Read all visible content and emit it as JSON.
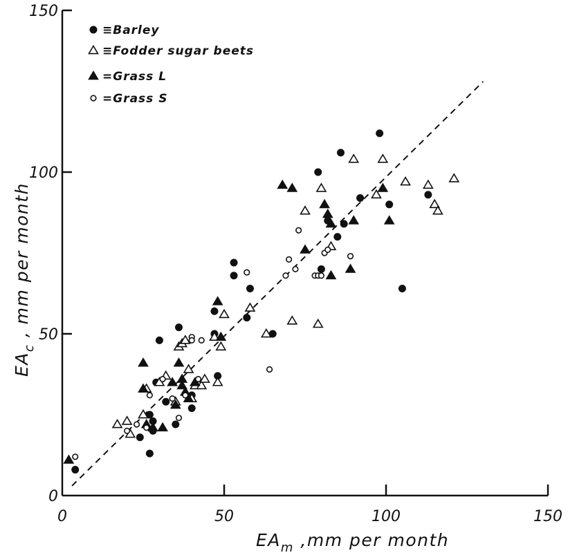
{
  "chart_data": {
    "type": "scatter",
    "xlabel": {
      "base": "EA",
      "sub": "m",
      "rest": " ,mm per month"
    },
    "ylabel": {
      "base": "EA",
      "sub": "c",
      "rest": " , mm per month"
    },
    "xlim": [
      0,
      150
    ],
    "ylim": [
      0,
      150
    ],
    "xticks": [
      0,
      50,
      100,
      150
    ],
    "yticks": [
      0,
      50,
      100,
      150
    ],
    "xtick_labels": [
      "0",
      "50",
      "100",
      "150"
    ],
    "ytick_labels": [
      "0",
      "50",
      "100",
      "150"
    ],
    "grid": false,
    "legend_position": "top-left",
    "reference_line": {
      "style": "dashed",
      "from": [
        3,
        3
      ],
      "to": [
        130,
        128
      ]
    },
    "legend": [
      {
        "marker": "filled-circle",
        "label": "≡Barley"
      },
      {
        "marker": "open-triangle",
        "label": "≡Fodder sugar beets"
      },
      {
        "marker": "filled-triangle",
        "label": "=Grass L"
      },
      {
        "marker": "open-circle",
        "label": "=Grass S"
      }
    ],
    "series": [
      {
        "name": "Barley",
        "marker": "filled-circle",
        "points": [
          [
            4,
            8
          ],
          [
            24,
            18
          ],
          [
            27,
            25
          ],
          [
            28,
            20
          ],
          [
            28,
            23
          ],
          [
            27,
            13
          ],
          [
            29,
            35
          ],
          [
            30,
            48
          ],
          [
            32,
            29
          ],
          [
            35,
            22
          ],
          [
            36,
            52
          ],
          [
            40,
            27
          ],
          [
            40,
            31
          ],
          [
            47,
            57
          ],
          [
            47,
            50
          ],
          [
            48,
            37
          ],
          [
            53,
            68
          ],
          [
            53,
            72
          ],
          [
            57,
            55
          ],
          [
            58,
            64
          ],
          [
            65,
            50
          ],
          [
            79,
            100
          ],
          [
            80,
            70
          ],
          [
            82,
            85
          ],
          [
            85,
            80
          ],
          [
            87,
            84
          ],
          [
            86,
            106
          ],
          [
            92,
            92
          ],
          [
            98,
            112
          ],
          [
            101,
            90
          ],
          [
            105,
            64
          ],
          [
            113,
            93
          ]
        ]
      },
      {
        "name": "Fodder sugar beets",
        "marker": "open-triangle",
        "points": [
          [
            17,
            22
          ],
          [
            20,
            23
          ],
          [
            21,
            19
          ],
          [
            25,
            25
          ],
          [
            26,
            33
          ],
          [
            30,
            35
          ],
          [
            32,
            37
          ],
          [
            35,
            29
          ],
          [
            36,
            46
          ],
          [
            37,
            47
          ],
          [
            38,
            48
          ],
          [
            39,
            39
          ],
          [
            40,
            30
          ],
          [
            41,
            34
          ],
          [
            43,
            34
          ],
          [
            44,
            36
          ],
          [
            47,
            49
          ],
          [
            48,
            35
          ],
          [
            49,
            46
          ],
          [
            50,
            56
          ],
          [
            58,
            58
          ],
          [
            63,
            50
          ],
          [
            71,
            54
          ],
          [
            75,
            88
          ],
          [
            79,
            53
          ],
          [
            80,
            95
          ],
          [
            83,
            77
          ],
          [
            90,
            104
          ],
          [
            97,
            93
          ],
          [
            99,
            104
          ],
          [
            106,
            97
          ],
          [
            113,
            96
          ],
          [
            115,
            90
          ],
          [
            116,
            88
          ],
          [
            121,
            98
          ]
        ]
      },
      {
        "name": "Grass L",
        "marker": "filled-triangle",
        "points": [
          [
            2,
            11
          ],
          [
            25,
            33
          ],
          [
            25,
            41
          ],
          [
            26,
            22
          ],
          [
            28,
            21
          ],
          [
            31,
            21
          ],
          [
            34,
            35
          ],
          [
            35,
            28
          ],
          [
            36,
            41
          ],
          [
            37,
            34
          ],
          [
            37,
            36
          ],
          [
            38,
            32
          ],
          [
            39,
            30
          ],
          [
            41,
            35
          ],
          [
            48,
            60
          ],
          [
            49,
            49
          ],
          [
            68,
            96
          ],
          [
            71,
            95
          ],
          [
            75,
            76
          ],
          [
            81,
            90
          ],
          [
            82,
            87
          ],
          [
            83,
            84
          ],
          [
            83,
            68
          ],
          [
            89,
            70
          ],
          [
            90,
            85
          ],
          [
            99,
            95
          ],
          [
            101,
            85
          ]
        ]
      },
      {
        "name": "Grass S",
        "marker": "open-circle",
        "points": [
          [
            4,
            12
          ],
          [
            20,
            20
          ],
          [
            23,
            22
          ],
          [
            26,
            21
          ],
          [
            27,
            31
          ],
          [
            31,
            36
          ],
          [
            34,
            30
          ],
          [
            36,
            24
          ],
          [
            38,
            31
          ],
          [
            40,
            49
          ],
          [
            40,
            48
          ],
          [
            42,
            36
          ],
          [
            43,
            48
          ],
          [
            57,
            69
          ],
          [
            64,
            39
          ],
          [
            69,
            68
          ],
          [
            70,
            73
          ],
          [
            72,
            70
          ],
          [
            73,
            82
          ],
          [
            78,
            68
          ],
          [
            79,
            68
          ],
          [
            80,
            68
          ],
          [
            81,
            75
          ],
          [
            82,
            76
          ],
          [
            89,
            74
          ]
        ]
      }
    ]
  }
}
